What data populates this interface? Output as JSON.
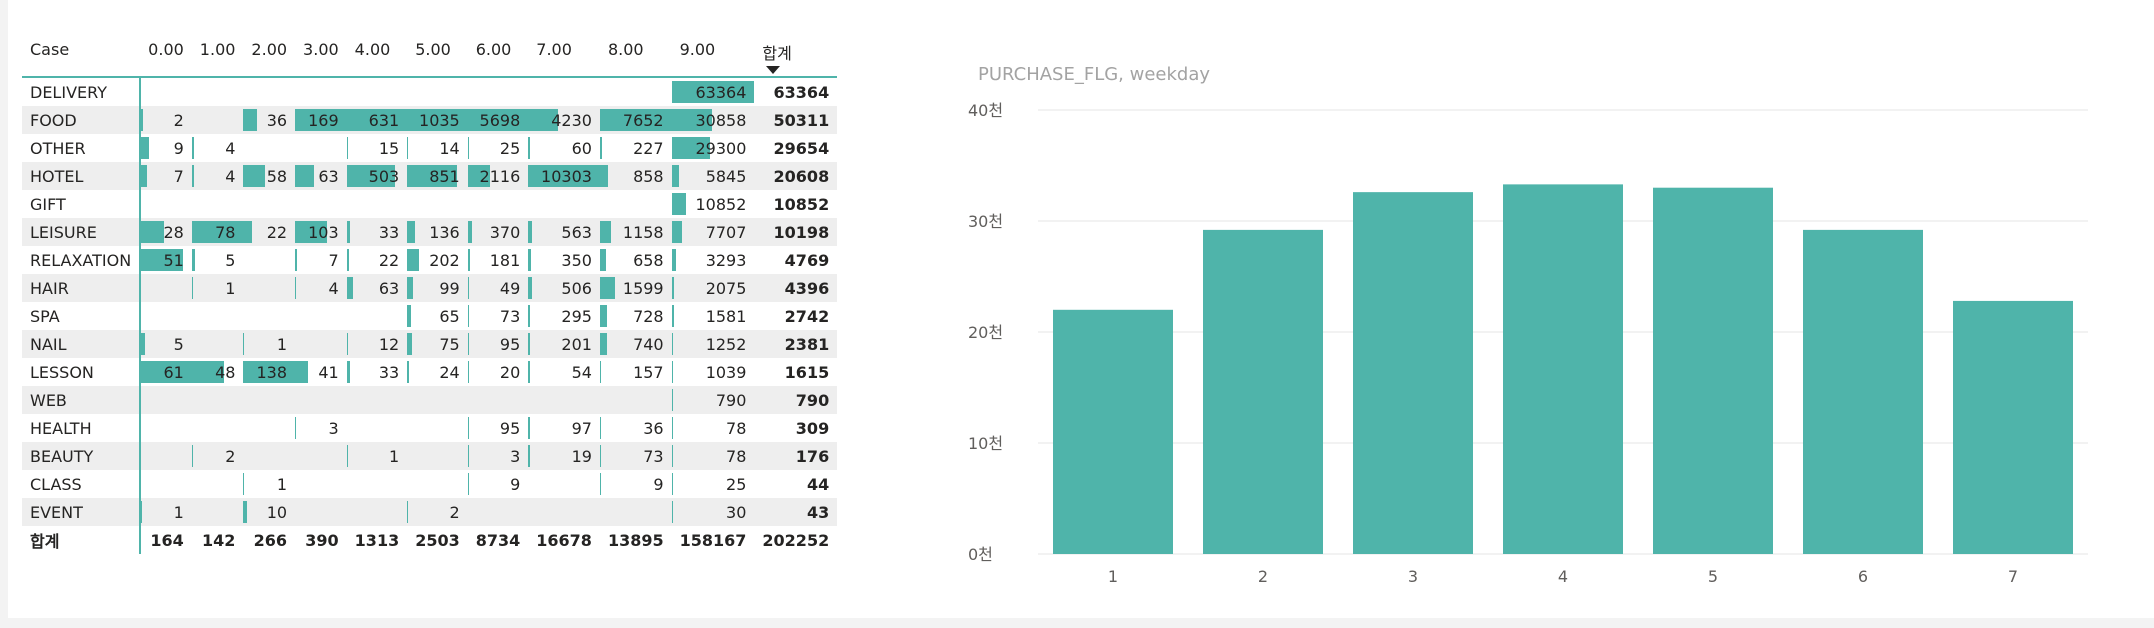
{
  "matrix": {
    "row_header": "Case",
    "columns": [
      "0.00",
      "1.00",
      "2.00",
      "3.00",
      "4.00",
      "5.00",
      "6.00",
      "7.00",
      "8.00",
      "9.00"
    ],
    "total_header": "합계",
    "sort_icon": "sort-descending-icon",
    "accent_color": "#4fb4aa",
    "rows": [
      {
        "label": "DELIVERY",
        "cells": [
          "",
          "",
          "",
          "",
          "",
          "",
          "",
          "",
          "",
          "63364"
        ],
        "total": "63364"
      },
      {
        "label": "FOOD",
        "cells": [
          "2",
          "",
          "36",
          "169",
          "631",
          "1035",
          "5698",
          "4230",
          "7652",
          "30858"
        ],
        "total": "50311"
      },
      {
        "label": "OTHER",
        "cells": [
          "9",
          "4",
          "",
          "",
          "15",
          "14",
          "25",
          "60",
          "227",
          "29300"
        ],
        "total": "29654"
      },
      {
        "label": "HOTEL",
        "cells": [
          "7",
          "4",
          "58",
          "63",
          "503",
          "851",
          "2116",
          "10303",
          "858",
          "5845"
        ],
        "total": "20608"
      },
      {
        "label": "GIFT",
        "cells": [
          "",
          "",
          "",
          "",
          "",
          "",
          "",
          "",
          "",
          "10852"
        ],
        "total": "10852"
      },
      {
        "label": "LEISURE",
        "cells": [
          "28",
          "78",
          "22",
          "103",
          "33",
          "136",
          "370",
          "563",
          "1158",
          "7707"
        ],
        "total": "10198"
      },
      {
        "label": "RELAXATION",
        "cells": [
          "51",
          "5",
          "",
          "7",
          "22",
          "202",
          "181",
          "350",
          "658",
          "3293"
        ],
        "total": "4769"
      },
      {
        "label": "HAIR",
        "cells": [
          "",
          "1",
          "",
          "4",
          "63",
          "99",
          "49",
          "506",
          "1599",
          "2075"
        ],
        "total": "4396"
      },
      {
        "label": "SPA",
        "cells": [
          "",
          "",
          "",
          "",
          "",
          "65",
          "73",
          "295",
          "728",
          "1581"
        ],
        "total": "2742"
      },
      {
        "label": "NAIL",
        "cells": [
          "5",
          "",
          "1",
          "",
          "12",
          "75",
          "95",
          "201",
          "740",
          "1252"
        ],
        "total": "2381"
      },
      {
        "label": "LESSON",
        "cells": [
          "61",
          "48",
          "138",
          "41",
          "33",
          "24",
          "20",
          "54",
          "157",
          "1039"
        ],
        "total": "1615"
      },
      {
        "label": "WEB",
        "cells": [
          "",
          "",
          "",
          "",
          "",
          "",
          "",
          "",
          "",
          "790"
        ],
        "total": "790"
      },
      {
        "label": "HEALTH",
        "cells": [
          "",
          "",
          "",
          "3",
          "",
          "",
          "95",
          "97",
          "36",
          "78"
        ],
        "total": "309"
      },
      {
        "label": "BEAUTY",
        "cells": [
          "",
          "2",
          "",
          "",
          "1",
          "",
          "3",
          "19",
          "73",
          "78"
        ],
        "total": "176"
      },
      {
        "label": "CLASS",
        "cells": [
          "",
          "",
          "1",
          "",
          "",
          "",
          "9",
          "",
          "9",
          "25"
        ],
        "total": "44"
      },
      {
        "label": "EVENT",
        "cells": [
          "1",
          "",
          "10",
          "",
          "",
          "2",
          "",
          "",
          "",
          "30"
        ],
        "total": "43"
      }
    ],
    "grand_total": {
      "label": "합계",
      "cells": [
        "164",
        "142",
        "266",
        "390",
        "1313",
        "2503",
        "8734",
        "16678",
        "13895",
        "158167"
      ],
      "total": "202252"
    }
  },
  "chart": {
    "title": "PURCHASE_FLG, weekday",
    "bar_color": "#4fb4aa",
    "y_ticks": [
      "0천",
      "10천",
      "20천",
      "30천",
      "40천"
    ]
  },
  "chart_data": {
    "type": "bar",
    "title": "PURCHASE_FLG, weekday",
    "categories": [
      "1",
      "2",
      "3",
      "4",
      "5",
      "6",
      "7"
    ],
    "values": [
      22000,
      29200,
      32600,
      33300,
      33000,
      29200,
      22800
    ],
    "ylim": [
      0,
      40000
    ],
    "y_tick_labels": [
      "0천",
      "10천",
      "20천",
      "30천",
      "40천"
    ],
    "grid": true,
    "legend": "none"
  }
}
